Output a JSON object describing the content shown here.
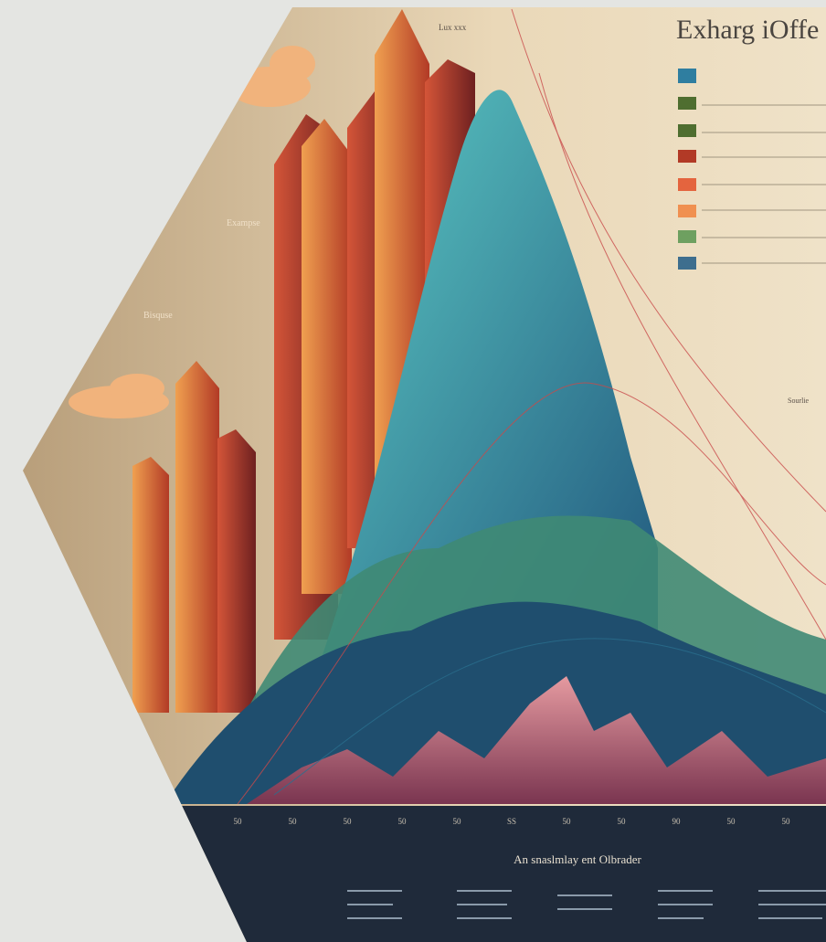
{
  "image": {
    "title": "Exharg iOffe",
    "caption": "An snaslmlay ent Olbrader",
    "labels": [
      "Exampse",
      "Bisquse",
      "Lux xxx",
      "Sourlie"
    ],
    "axis_labels": [
      "50",
      "50",
      "50",
      "50",
      "50",
      "SS",
      "50",
      "50",
      "90",
      "50",
      "50"
    ]
  }
}
